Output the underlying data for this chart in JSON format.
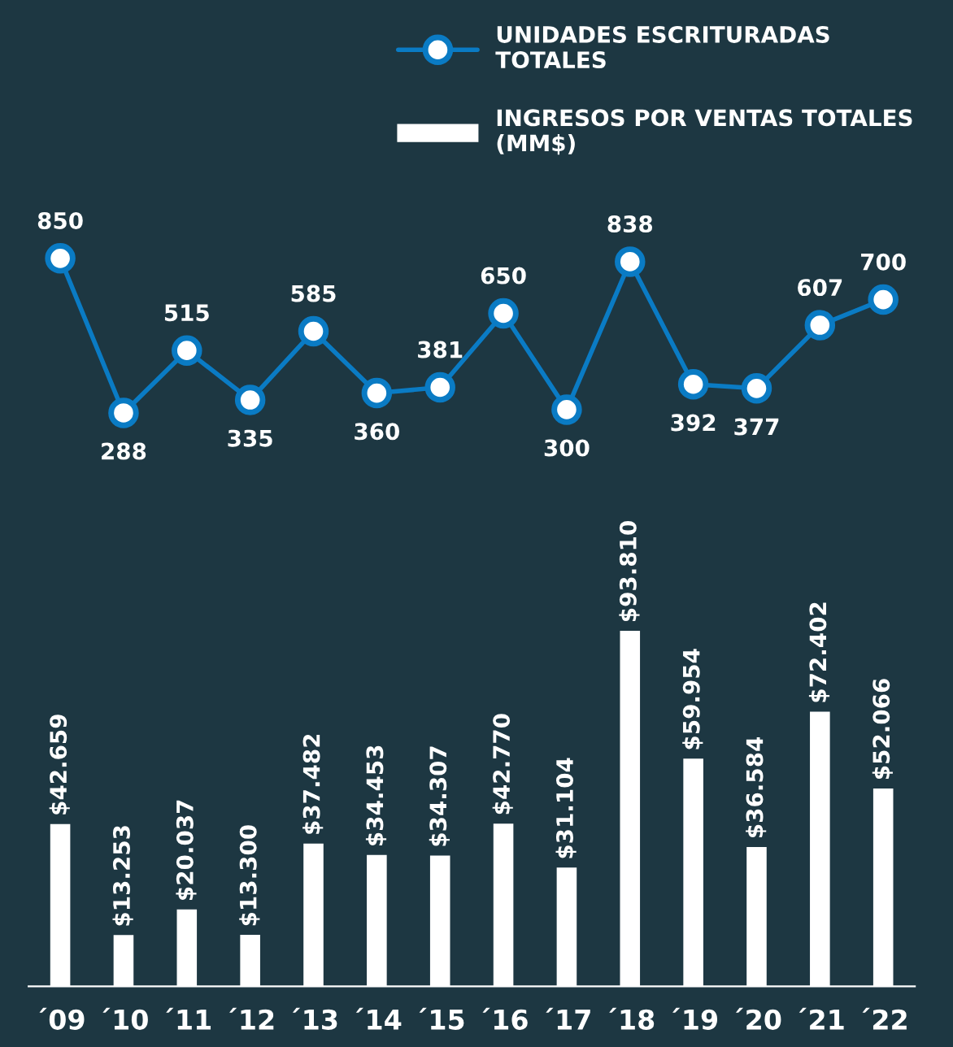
{
  "chart_data": [
    {
      "type": "line",
      "categories": [
        null,
        null,
        null,
        null,
        null,
        null,
        null,
        null,
        null,
        null,
        null,
        null,
        null,
        null
      ],
      "series": [
        {
          "name": "UNIDADES ESCRITURADAS TOTALES",
          "color": "#0a7bc4",
          "values": [
            850,
            288,
            515,
            335,
            585,
            360,
            381,
            650,
            300,
            838,
            392,
            377,
            607,
            700
          ]
        }
      ],
      "data_labels": true,
      "marker": "circle",
      "line_style": "solid",
      "legend": "top right",
      "grid": false
    },
    {
      "type": "bar",
      "categories": [
        "´09",
        "´10",
        "´11",
        "´12",
        "´13",
        "´14",
        "´15",
        "´16",
        "´17",
        "´18",
        "´19",
        "´20",
        "´21",
        "´22"
      ],
      "series": [
        {
          "name": "INGRESOS POR VENTAS TOTALES (MM$)",
          "color": "#ffffff",
          "values": [
            42659,
            13253,
            20037,
            13300,
            37482,
            34453,
            34307,
            42770,
            31104,
            93810,
            59954,
            36584,
            72402,
            52066
          ],
          "value_labels": [
            "$42.659",
            "$13.253",
            "$20.037",
            "$13.300",
            "$37.482",
            "$34.453",
            "$34.307",
            "$42.770",
            "$31.104",
            "$93.810",
            "$59.954",
            "$36.584",
            "$72.402",
            "$52.066"
          ]
        }
      ],
      "legend": "top right",
      "grid": false
    }
  ]
}
